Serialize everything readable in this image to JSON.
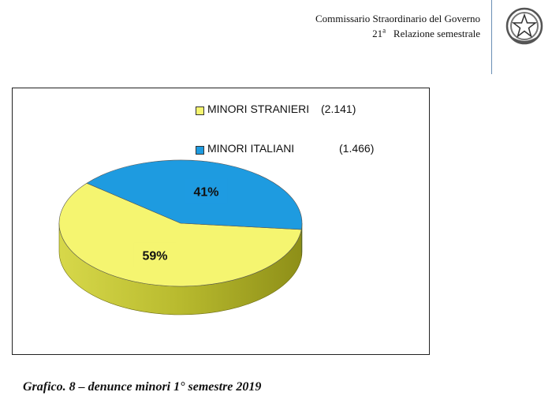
{
  "header": {
    "line1": "Commissario Straordinario del Governo",
    "report_number": "21",
    "report_number_suffix": "a",
    "report_title": "Relazione semestrale"
  },
  "caption": "Grafico. 8 – denunce minori 1° semestre 2019",
  "chart_data": {
    "type": "pie",
    "title": "",
    "legend_position": "top-right",
    "slices": [
      {
        "name": "MINORI STRANIERI",
        "value": 2141,
        "value_label": "(2.141)",
        "percent": 59,
        "percent_label": "59%",
        "color": "#f5f570"
      },
      {
        "name": "MINORI ITALIANI",
        "value": 1466,
        "value_label": "(1.466)",
        "percent": 41,
        "percent_label": "41%",
        "color": "#1e9be0"
      }
    ]
  }
}
